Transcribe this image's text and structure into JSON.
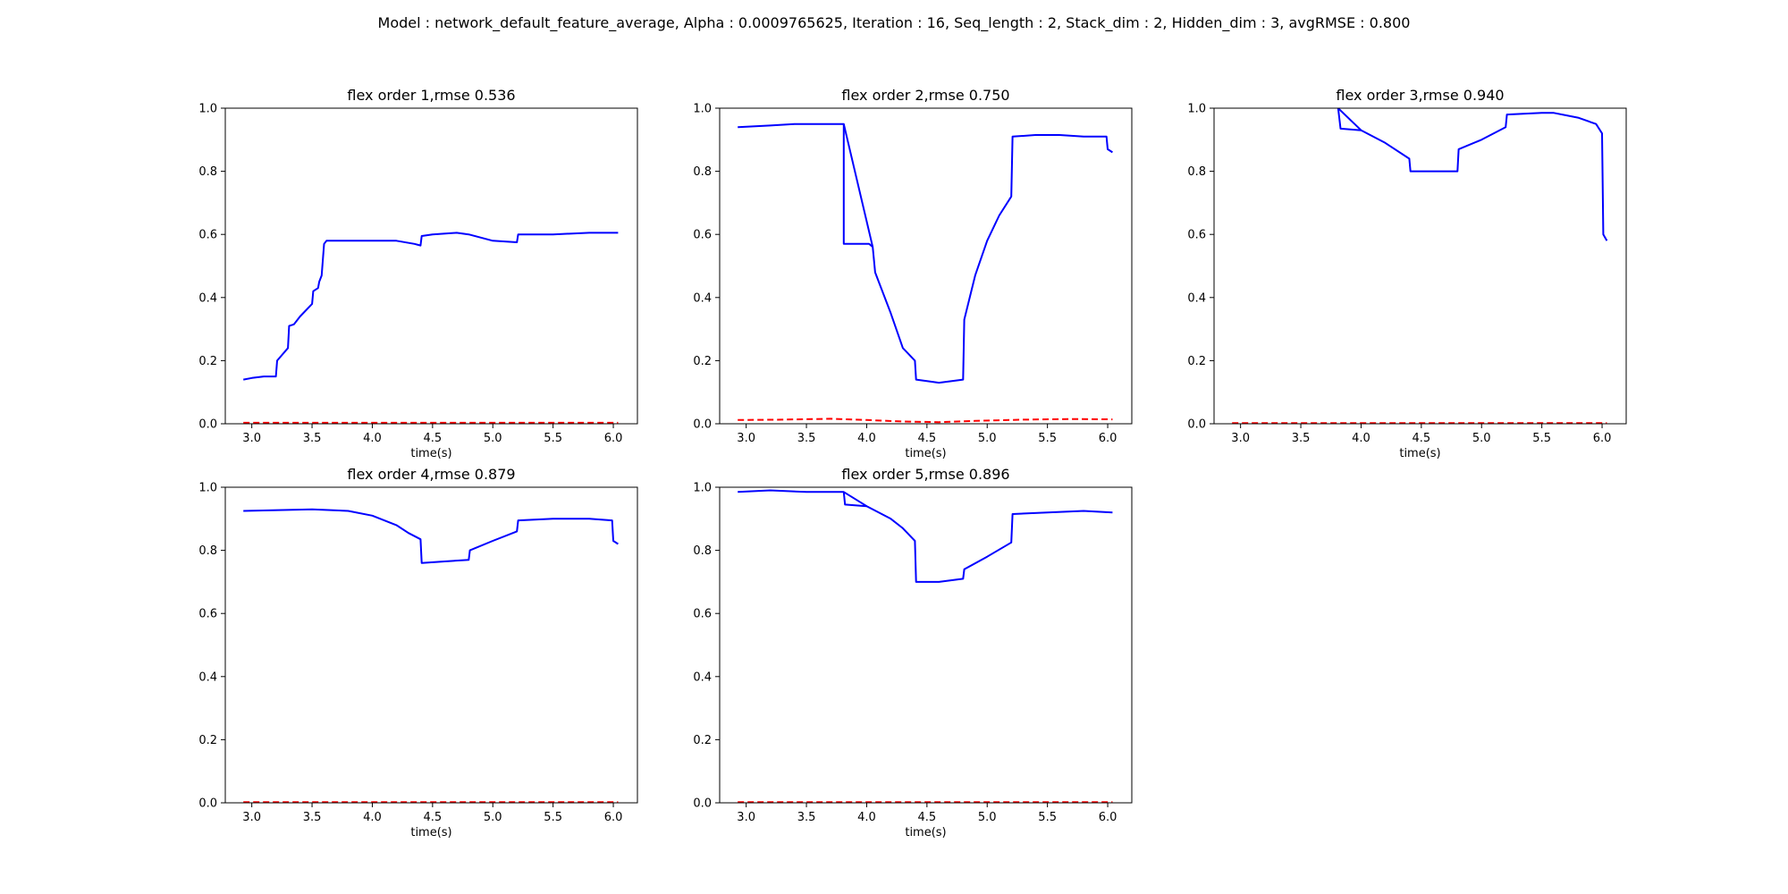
{
  "figure": {
    "suptitle": "Model : network_default_feature_average, Alpha : 0.0009765625, Iteration : 16, Seq_length : 2, Stack_dim : 2, Hidden_dim : 3, avgRMSE : 0.800"
  },
  "chart_data": [
    {
      "type": "line",
      "title": "flex order 1,rmse 0.536",
      "xlabel": "time(s)",
      "ylabel": "",
      "xlim": [
        2.78,
        6.2
      ],
      "ylim": [
        0.0,
        1.0
      ],
      "xticks": [
        3.0,
        3.5,
        4.0,
        4.5,
        5.0,
        5.5,
        6.0
      ],
      "xtick_labels": [
        "3.0",
        "3.5",
        "4.0",
        "4.5",
        "5.0",
        "5.5",
        "6.0"
      ],
      "yticks": [
        0.0,
        0.2,
        0.4,
        0.6,
        0.8,
        1.0
      ],
      "ytick_labels": [
        "0.0",
        "0.2",
        "0.4",
        "0.6",
        "0.8",
        "1.0"
      ],
      "grid": false,
      "series": [
        {
          "color": "#0000ff",
          "style": "solid",
          "x": [
            2.93,
            3.0,
            3.1,
            3.2,
            3.21,
            3.3,
            3.31,
            3.35,
            3.36,
            3.4,
            3.5,
            3.51,
            3.55,
            3.56,
            3.58,
            3.6,
            3.62,
            3.8,
            4.0,
            4.2,
            4.35,
            4.4,
            4.41,
            4.5,
            4.7,
            4.8,
            5.0,
            5.2,
            5.21,
            5.5,
            5.8,
            6.04
          ],
          "y": [
            0.14,
            0.145,
            0.15,
            0.15,
            0.2,
            0.24,
            0.31,
            0.315,
            0.32,
            0.34,
            0.38,
            0.42,
            0.43,
            0.45,
            0.47,
            0.57,
            0.58,
            0.58,
            0.58,
            0.58,
            0.57,
            0.565,
            0.595,
            0.6,
            0.605,
            0.6,
            0.58,
            0.575,
            0.6,
            0.6,
            0.605,
            0.605
          ]
        },
        {
          "color": "#ff0000",
          "style": "dashed",
          "x": [
            2.93,
            6.04
          ],
          "y": [
            0.003,
            0.003
          ]
        }
      ]
    },
    {
      "type": "line",
      "title": "flex order 2,rmse 0.750",
      "xlabel": "time(s)",
      "ylabel": "",
      "xlim": [
        2.78,
        6.2
      ],
      "ylim": [
        0.0,
        1.0
      ],
      "xticks": [
        3.0,
        3.5,
        4.0,
        4.5,
        5.0,
        5.5,
        6.0
      ],
      "xtick_labels": [
        "3.0",
        "3.5",
        "4.0",
        "4.5",
        "5.0",
        "5.5",
        "6.0"
      ],
      "yticks": [
        0.0,
        0.2,
        0.4,
        0.6,
        0.8,
        1.0
      ],
      "ytick_labels": [
        "0.0",
        "0.2",
        "0.4",
        "0.6",
        "0.8",
        "1.0"
      ],
      "grid": false,
      "series": [
        {
          "color": "#0000ff",
          "style": "solid",
          "x": [
            2.93,
            3.2,
            3.4,
            3.6,
            3.81,
            4.05,
            4.07,
            4.1,
            4.2,
            4.3,
            4.4,
            4.41,
            4.5,
            4.6,
            4.8,
            4.81,
            4.9,
            5.0,
            5.1,
            5.2,
            5.21,
            5.4,
            5.6,
            5.8,
            5.99,
            6.0,
            6.04
          ],
          "y": [
            0.94,
            0.945,
            0.95,
            0.95,
            0.95,
            0.56,
            0.48,
            0.45,
            0.35,
            0.24,
            0.2,
            0.14,
            0.135,
            0.13,
            0.14,
            0.33,
            0.47,
            0.58,
            0.66,
            0.72,
            0.91,
            0.915,
            0.915,
            0.91,
            0.91,
            0.87,
            0.86
          ]
        },
        {
          "color": "#0000ff",
          "style": "solid",
          "x": [
            3.81,
            3.81,
            4.02,
            4.05
          ],
          "y": [
            0.95,
            0.57,
            0.57,
            0.56
          ]
        },
        {
          "color": "#ff0000",
          "style": "dashed",
          "x": [
            2.93,
            3.3,
            3.7,
            4.0,
            4.3,
            4.6,
            4.9,
            5.3,
            5.7,
            6.04
          ],
          "y": [
            0.012,
            0.013,
            0.016,
            0.012,
            0.007,
            0.005,
            0.009,
            0.013,
            0.015,
            0.014
          ]
        }
      ]
    },
    {
      "type": "line",
      "title": "flex order 3,rmse 0.940",
      "xlabel": "time(s)",
      "ylabel": "",
      "xlim": [
        2.78,
        6.2
      ],
      "ylim": [
        0.0,
        1.0
      ],
      "xticks": [
        3.0,
        3.5,
        4.0,
        4.5,
        5.0,
        5.5,
        6.0
      ],
      "xtick_labels": [
        "3.0",
        "3.5",
        "4.0",
        "4.5",
        "5.0",
        "5.5",
        "6.0"
      ],
      "yticks": [
        0.0,
        0.2,
        0.4,
        0.6,
        0.8,
        1.0
      ],
      "ytick_labels": [
        "0.0",
        "0.2",
        "0.4",
        "0.6",
        "0.8",
        "1.0"
      ],
      "grid": false,
      "series": [
        {
          "color": "#0000ff",
          "style": "solid",
          "x": [
            3.81,
            4.0,
            4.2,
            4.4,
            4.41,
            4.8,
            4.81,
            5.0,
            5.2,
            5.21,
            5.5,
            5.6,
            5.8,
            5.95,
            6.0,
            6.01,
            6.04
          ],
          "y": [
            1.0,
            0.93,
            0.89,
            0.84,
            0.8,
            0.8,
            0.87,
            0.9,
            0.94,
            0.98,
            0.985,
            0.985,
            0.97,
            0.95,
            0.92,
            0.6,
            0.58
          ]
        },
        {
          "color": "#0000ff",
          "style": "solid",
          "x": [
            3.81,
            3.83,
            4.0
          ],
          "y": [
            1.0,
            0.935,
            0.93
          ]
        },
        {
          "color": "#ff0000",
          "style": "dashed",
          "x": [
            2.93,
            6.04
          ],
          "y": [
            0.002,
            0.002
          ]
        }
      ]
    },
    {
      "type": "line",
      "title": "flex order 4,rmse 0.879",
      "xlabel": "time(s)",
      "ylabel": "",
      "xlim": [
        2.78,
        6.2
      ],
      "ylim": [
        0.0,
        1.0
      ],
      "xticks": [
        3.0,
        3.5,
        4.0,
        4.5,
        5.0,
        5.5,
        6.0
      ],
      "xtick_labels": [
        "3.0",
        "3.5",
        "4.0",
        "4.5",
        "5.0",
        "5.5",
        "6.0"
      ],
      "yticks": [
        0.0,
        0.2,
        0.4,
        0.6,
        0.8,
        1.0
      ],
      "ytick_labels": [
        "0.0",
        "0.2",
        "0.4",
        "0.6",
        "0.8",
        "1.0"
      ],
      "grid": false,
      "series": [
        {
          "color": "#0000ff",
          "style": "solid",
          "x": [
            2.93,
            3.5,
            3.8,
            4.0,
            4.2,
            4.3,
            4.4,
            4.41,
            4.6,
            4.8,
            4.81,
            5.0,
            5.2,
            5.21,
            5.5,
            5.8,
            5.99,
            6.0,
            6.04
          ],
          "y": [
            0.925,
            0.93,
            0.925,
            0.91,
            0.88,
            0.855,
            0.835,
            0.76,
            0.765,
            0.77,
            0.8,
            0.83,
            0.86,
            0.895,
            0.9,
            0.9,
            0.895,
            0.83,
            0.82
          ]
        },
        {
          "color": "#ff0000",
          "style": "dashed",
          "x": [
            2.93,
            6.04
          ],
          "y": [
            0.002,
            0.002
          ]
        }
      ]
    },
    {
      "type": "line",
      "title": "flex order 5,rmse 0.896",
      "xlabel": "time(s)",
      "ylabel": "",
      "xlim": [
        2.78,
        6.2
      ],
      "ylim": [
        0.0,
        1.0
      ],
      "xticks": [
        3.0,
        3.5,
        4.0,
        4.5,
        5.0,
        5.5,
        6.0
      ],
      "xtick_labels": [
        "3.0",
        "3.5",
        "4.0",
        "4.5",
        "5.0",
        "5.5",
        "6.0"
      ],
      "yticks": [
        0.0,
        0.2,
        0.4,
        0.6,
        0.8,
        1.0
      ],
      "ytick_labels": [
        "0.0",
        "0.2",
        "0.4",
        "0.6",
        "0.8",
        "1.0"
      ],
      "grid": false,
      "series": [
        {
          "color": "#0000ff",
          "style": "solid",
          "x": [
            2.93,
            3.2,
            3.5,
            3.81,
            4.0,
            4.2,
            4.3,
            4.4,
            4.41,
            4.6,
            4.8,
            4.81,
            5.0,
            5.2,
            5.21,
            5.5,
            5.8,
            6.04
          ],
          "y": [
            0.985,
            0.99,
            0.985,
            0.985,
            0.94,
            0.9,
            0.87,
            0.83,
            0.7,
            0.7,
            0.71,
            0.74,
            0.78,
            0.825,
            0.915,
            0.92,
            0.925,
            0.92
          ]
        },
        {
          "color": "#0000ff",
          "style": "solid",
          "x": [
            3.81,
            3.82,
            4.0
          ],
          "y": [
            0.985,
            0.945,
            0.94
          ]
        },
        {
          "color": "#ff0000",
          "style": "dashed",
          "x": [
            2.93,
            6.04
          ],
          "y": [
            0.002,
            0.002
          ]
        }
      ]
    }
  ]
}
